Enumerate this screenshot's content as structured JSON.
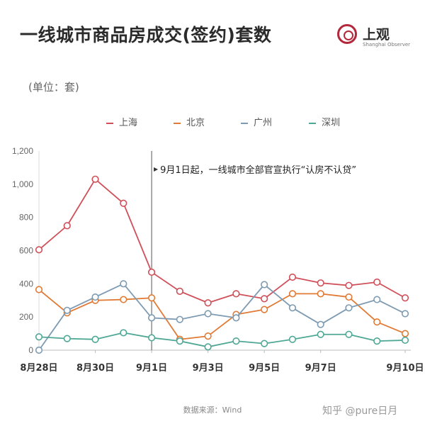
{
  "title": "一线城市商品房成交(签约)套数",
  "unit_label": "(单位：套)",
  "logo": {
    "name": "上观",
    "subtitle": "Shanghai Observer"
  },
  "source": "数据来源：Wind",
  "watermark": "知乎 @pure日月",
  "colors": {
    "上海": "#d0505a",
    "北京": "#e07a35",
    "广州": "#7e9bb2",
    "深圳": "#4fa895"
  },
  "chart_data": {
    "type": "line",
    "title": "一线城市商品房成交(签约)套数",
    "ylabel": "(单位：套)",
    "xlabel": "",
    "ylim": [
      0,
      1200
    ],
    "yticks": [
      0,
      200,
      400,
      600,
      800,
      1000,
      1200
    ],
    "ytick_labels": [
      "0",
      "200",
      "400",
      "600",
      "800",
      "1,000",
      "1,200"
    ],
    "x": [
      "8月28日",
      "8月29日",
      "8月30日",
      "8月31日",
      "9月1日",
      "9月2日",
      "9月3日",
      "9月4日",
      "9月5日",
      "9月6日",
      "9月7日",
      "9月8日",
      "9月9日",
      "9月10日"
    ],
    "xtick_labels": [
      "8月28日",
      "",
      "8月30日",
      "",
      "9月1日",
      "",
      "9月3日",
      "",
      "9月5日",
      "",
      "9月7日",
      "",
      "",
      "9月10日"
    ],
    "series": [
      {
        "name": "上海",
        "values": [
          605,
          750,
          1030,
          885,
          470,
          355,
          285,
          340,
          310,
          440,
          405,
          390,
          410,
          315
        ]
      },
      {
        "name": "北京",
        "values": [
          365,
          225,
          300,
          305,
          315,
          65,
          85,
          215,
          245,
          340,
          340,
          320,
          170,
          100
        ]
      },
      {
        "name": "广州",
        "values": [
          0,
          240,
          320,
          400,
          195,
          185,
          220,
          195,
          395,
          255,
          155,
          255,
          305,
          220
        ]
      },
      {
        "name": "深圳",
        "values": [
          80,
          70,
          65,
          105,
          75,
          55,
          20,
          55,
          40,
          65,
          95,
          95,
          55,
          60
        ]
      }
    ],
    "annotation": {
      "text": "9月1日起，一线城市全部官宣执行“认房不认贷”",
      "x": "9月1日"
    },
    "grid": false,
    "legend_position": "top"
  }
}
